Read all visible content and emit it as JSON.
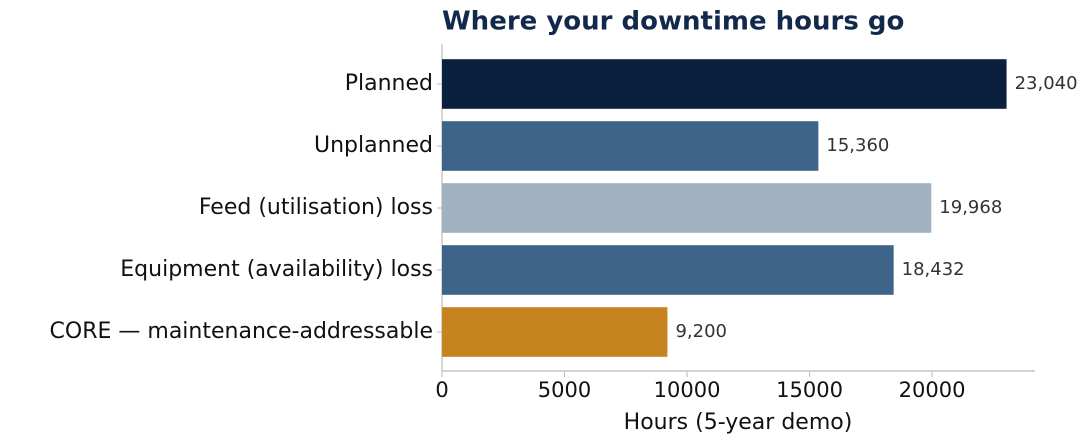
{
  "chart_data": {
    "type": "barh",
    "title": "Where your downtime hours go",
    "categories": [
      "Planned",
      "Unplanned",
      "Feed (utilisation) loss",
      "Equipment (availability) loss",
      "CORE — maintenance-addressable"
    ],
    "values": [
      23040,
      15360,
      19968,
      18432,
      9200
    ],
    "value_labels": [
      "23,040",
      "15,360",
      "19,968",
      "18,432",
      "9,200"
    ],
    "colors": [
      "#0b1f3f",
      "#3f6489",
      "#a0b1c2",
      "#3f6489",
      "#c58420"
    ],
    "xlabel": "Hours (5-year demo)",
    "xlim": [
      0,
      24200
    ],
    "xticks": [
      0,
      5000,
      10000,
      15000,
      20000
    ],
    "grid": false
  }
}
